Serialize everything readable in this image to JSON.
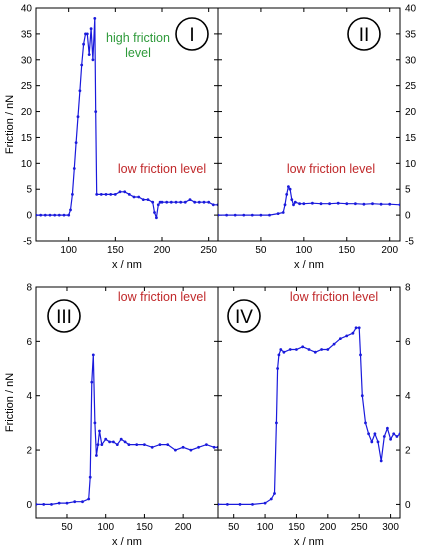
{
  "figure": {
    "colors": {
      "series": "#1a1adc",
      "high_friction": "#2e9a3a",
      "low_friction": "#c0282a"
    }
  },
  "chart_data": [
    {
      "type": "line",
      "panel": "I",
      "xlabel": "x / nm",
      "ylabel": "Friction / nN",
      "xlim": [
        65,
        260
      ],
      "ylim": [
        -5,
        40
      ],
      "xticks": [
        100,
        150,
        200,
        250
      ],
      "yticks": [
        -5,
        0,
        5,
        10,
        15,
        20,
        25,
        30,
        35,
        40
      ],
      "ytick_side": "left",
      "annotations": [
        "high friction",
        "level",
        "low friction level"
      ],
      "series": [
        {
          "x": [
            65,
            70,
            75,
            80,
            85,
            90,
            95,
            100,
            102,
            104,
            106,
            108,
            110,
            112,
            114,
            116,
            118,
            120,
            122,
            124,
            126,
            128,
            129,
            130,
            135,
            140,
            145,
            150,
            155,
            160,
            165,
            170,
            175,
            180,
            185,
            190,
            192,
            194,
            196,
            198,
            200,
            205,
            210,
            215,
            220,
            225,
            230,
            235,
            240,
            245,
            250,
            255,
            260
          ],
          "y": [
            0,
            0,
            0,
            0,
            0,
            0,
            0,
            0,
            1,
            4,
            9,
            14,
            19,
            24,
            29,
            33,
            35,
            35,
            31,
            36,
            30,
            38,
            20,
            4,
            4,
            4,
            4,
            4,
            4.5,
            4.5,
            4,
            3.5,
            3.5,
            3,
            3,
            2.5,
            0.5,
            -0.5,
            2,
            2.5,
            2.5,
            2.5,
            2.5,
            2.5,
            2.5,
            2.5,
            3,
            2.5,
            2.5,
            2.5,
            2.5,
            2,
            2
          ]
        }
      ]
    },
    {
      "type": "line",
      "panel": "II",
      "xlabel": "x / nm",
      "ylabel": "Friction / nN",
      "xlim": [
        0,
        212
      ],
      "ylim": [
        -5,
        40
      ],
      "xticks": [
        50,
        100,
        150,
        200
      ],
      "yticks": [
        -5,
        0,
        5,
        10,
        15,
        20,
        25,
        30,
        35,
        40
      ],
      "ytick_side": "right",
      "annotations": [
        "low friction level"
      ],
      "series": [
        {
          "x": [
            0,
            10,
            20,
            30,
            40,
            50,
            60,
            70,
            76,
            78,
            80,
            82,
            84,
            86,
            88,
            90,
            95,
            100,
            110,
            120,
            130,
            140,
            150,
            160,
            170,
            180,
            190,
            200,
            212
          ],
          "y": [
            0,
            0,
            0,
            0,
            0,
            0,
            0,
            0.3,
            0.5,
            2,
            4,
            5.5,
            5,
            3,
            2,
            2.5,
            2.2,
            2.2,
            2.3,
            2.2,
            2.2,
            2.3,
            2.2,
            2.2,
            2.1,
            2.2,
            2.1,
            2.1,
            2
          ]
        }
      ]
    },
    {
      "type": "line",
      "panel": "III",
      "xlabel": "x / nm",
      "ylabel": "Friction / nN",
      "xlim": [
        10,
        245
      ],
      "ylim": [
        -0.5,
        8
      ],
      "xticks": [
        50,
        100,
        150,
        200
      ],
      "yticks": [
        0,
        2,
        4,
        6,
        8
      ],
      "ytick_side": "left",
      "annotations": [
        "low friction level"
      ],
      "series": [
        {
          "x": [
            10,
            20,
            30,
            40,
            50,
            60,
            70,
            78,
            80,
            82,
            84,
            86,
            88,
            90,
            92,
            95,
            100,
            105,
            110,
            115,
            120,
            125,
            130,
            140,
            150,
            160,
            170,
            180,
            190,
            200,
            210,
            220,
            230,
            240,
            245
          ],
          "y": [
            0,
            0,
            0,
            0.05,
            0.05,
            0.1,
            0.1,
            0.2,
            1,
            4.5,
            5.5,
            3,
            1.8,
            2.2,
            2.7,
            2.2,
            2.4,
            2.3,
            2.3,
            2.2,
            2.4,
            2.3,
            2.2,
            2.2,
            2.2,
            2.1,
            2.2,
            2.2,
            2,
            2.1,
            2,
            2.1,
            2.2,
            2.1,
            2.1
          ]
        }
      ]
    },
    {
      "type": "line",
      "panel": "IV",
      "xlabel": "x / nm",
      "ylabel": "Friction / nN",
      "xlim": [
        25,
        315
      ],
      "ylim": [
        -0.5,
        8
      ],
      "xticks": [
        50,
        100,
        150,
        200,
        250,
        300
      ],
      "yticks": [
        0,
        2,
        4,
        6,
        8
      ],
      "ytick_side": "right",
      "annotations": [
        "low friction level"
      ],
      "series": [
        {
          "x": [
            25,
            40,
            60,
            80,
            100,
            110,
            115,
            118,
            120,
            122,
            125,
            130,
            140,
            150,
            160,
            170,
            180,
            190,
            200,
            210,
            220,
            230,
            240,
            245,
            250,
            252,
            255,
            260,
            265,
            270,
            275,
            280,
            285,
            290,
            295,
            300,
            305,
            310,
            315
          ],
          "y": [
            0,
            0,
            0,
            0,
            0.05,
            0.2,
            0.4,
            3,
            5,
            5.5,
            5.7,
            5.6,
            5.7,
            5.7,
            5.8,
            5.7,
            5.6,
            5.7,
            5.7,
            5.9,
            6.1,
            6.2,
            6.3,
            6.5,
            6.5,
            5.5,
            4,
            3,
            2.6,
            2.3,
            2.6,
            2.3,
            1.6,
            2.5,
            2.8,
            2.4,
            2.6,
            2.5,
            2.6
          ]
        }
      ]
    }
  ]
}
